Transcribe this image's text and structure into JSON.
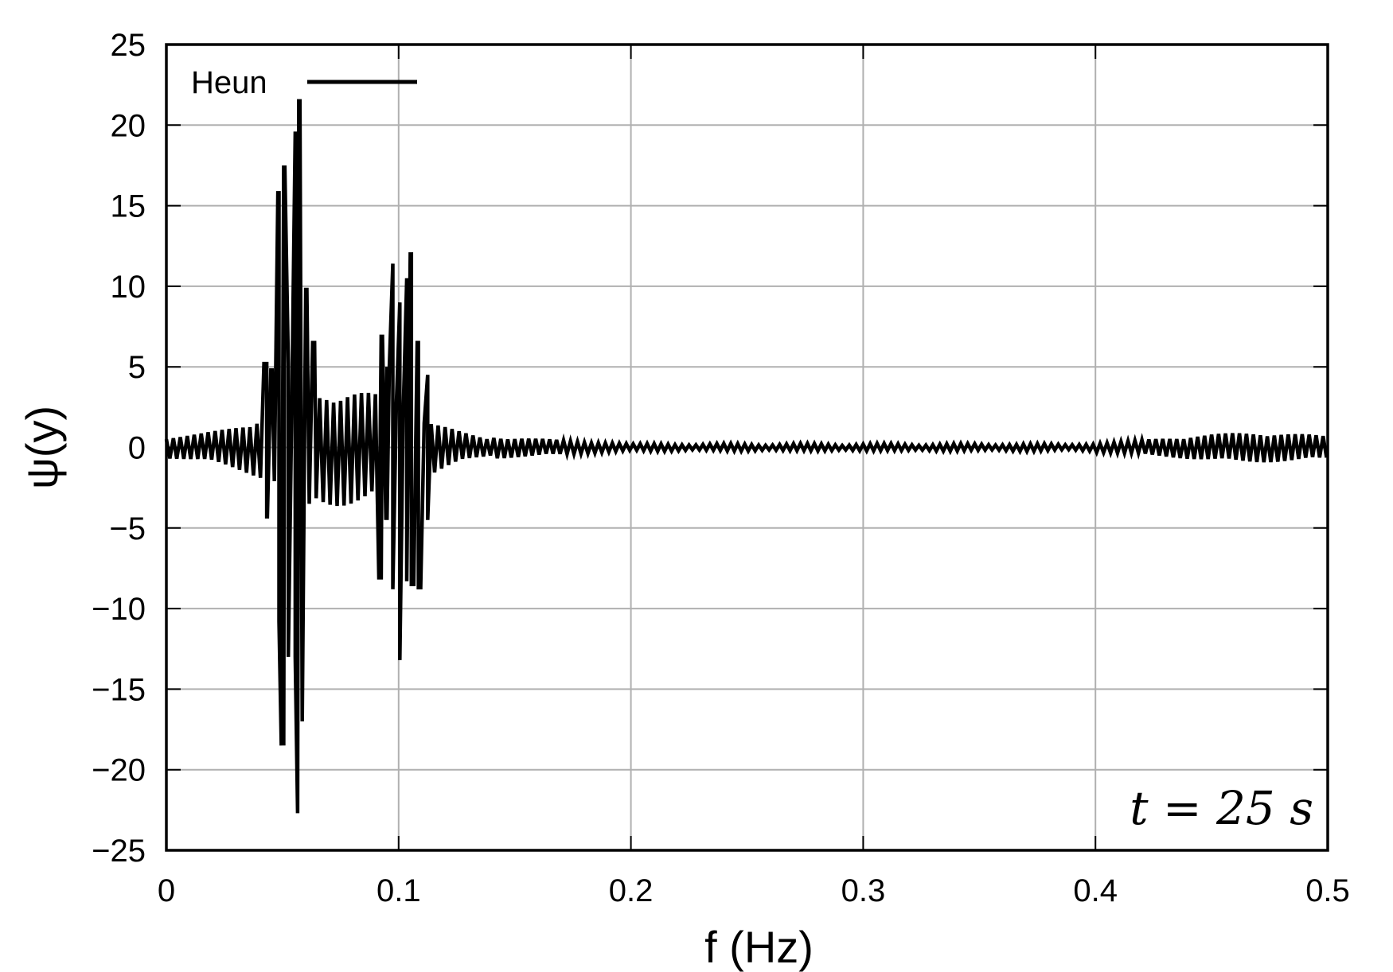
{
  "chart_data": {
    "type": "line",
    "title": "",
    "xlabel": "f (Hz)",
    "ylabel": "ψ(y)",
    "xlim": [
      0,
      0.5
    ],
    "ylim": [
      -25,
      25
    ],
    "grid": true,
    "xticks": [
      0,
      0.1,
      0.2,
      0.3,
      0.4,
      0.5
    ],
    "xtick_labels": [
      "0",
      "0.1",
      "0.2",
      "0.3",
      "0.4",
      "0.5"
    ],
    "yticks": [
      25,
      20,
      15,
      10,
      5,
      0,
      -5,
      -10,
      -15,
      -20,
      -25
    ],
    "ytick_labels": [
      "25",
      "20",
      "15",
      "10",
      "5",
      "0",
      "−5",
      "−10",
      "−15",
      "−20",
      "−25"
    ],
    "legend": {
      "position": "top-left",
      "entries": [
        "Heun"
      ]
    },
    "annotation": "t = 25 s",
    "series": [
      {
        "name": "Heun",
        "color": "#000000",
        "peaks": [
          {
            "x": 0.0432,
            "y": 5.2
          },
          {
            "x": 0.0455,
            "y": 4.8
          },
          {
            "x": 0.0485,
            "y": 15.8
          },
          {
            "x": 0.0505,
            "y": 17.5
          },
          {
            "x": 0.0525,
            "y": 5.2
          },
          {
            "x": 0.0555,
            "y": 19.6
          },
          {
            "x": 0.0575,
            "y": 21.5
          },
          {
            "x": 0.0605,
            "y": 9.8
          },
          {
            "x": 0.0638,
            "y": 6.5
          },
          {
            "x": 0.0925,
            "y": 7.0
          },
          {
            "x": 0.095,
            "y": 5.0
          },
          {
            "x": 0.0975,
            "y": 11.4
          },
          {
            "x": 0.1005,
            "y": 9.0
          },
          {
            "x": 0.1035,
            "y": 10.5
          },
          {
            "x": 0.1055,
            "y": 12.0
          },
          {
            "x": 0.1085,
            "y": 6.5
          },
          {
            "x": 0.1125,
            "y": 4.5
          }
        ],
        "troughs": [
          {
            "x": 0.0432,
            "y": -4.3
          },
          {
            "x": 0.0485,
            "y": -10.8
          },
          {
            "x": 0.0505,
            "y": -18.5
          },
          {
            "x": 0.0525,
            "y": -13.0
          },
          {
            "x": 0.0555,
            "y": -13.0
          },
          {
            "x": 0.0565,
            "y": -22.7
          },
          {
            "x": 0.0585,
            "y": -17.0
          },
          {
            "x": 0.0615,
            "y": -3.5
          },
          {
            "x": 0.0925,
            "y": -8.2
          },
          {
            "x": 0.095,
            "y": -4.5
          },
          {
            "x": 0.0975,
            "y": -8.8
          },
          {
            "x": 0.1005,
            "y": -13.2
          },
          {
            "x": 0.1035,
            "y": -8.3
          },
          {
            "x": 0.1055,
            "y": -8.5
          },
          {
            "x": 0.1085,
            "y": -8.7
          },
          {
            "x": 0.1125,
            "y": -4.5
          }
        ],
        "envelope": {
          "low_band_center_hz": 0.0775,
          "low_band_width_hz": 0.04,
          "high_band_center_hz": 0.47,
          "high_band_max_amplitude": 1.2,
          "baseline_amplitude": 0.6
        }
      }
    ]
  }
}
